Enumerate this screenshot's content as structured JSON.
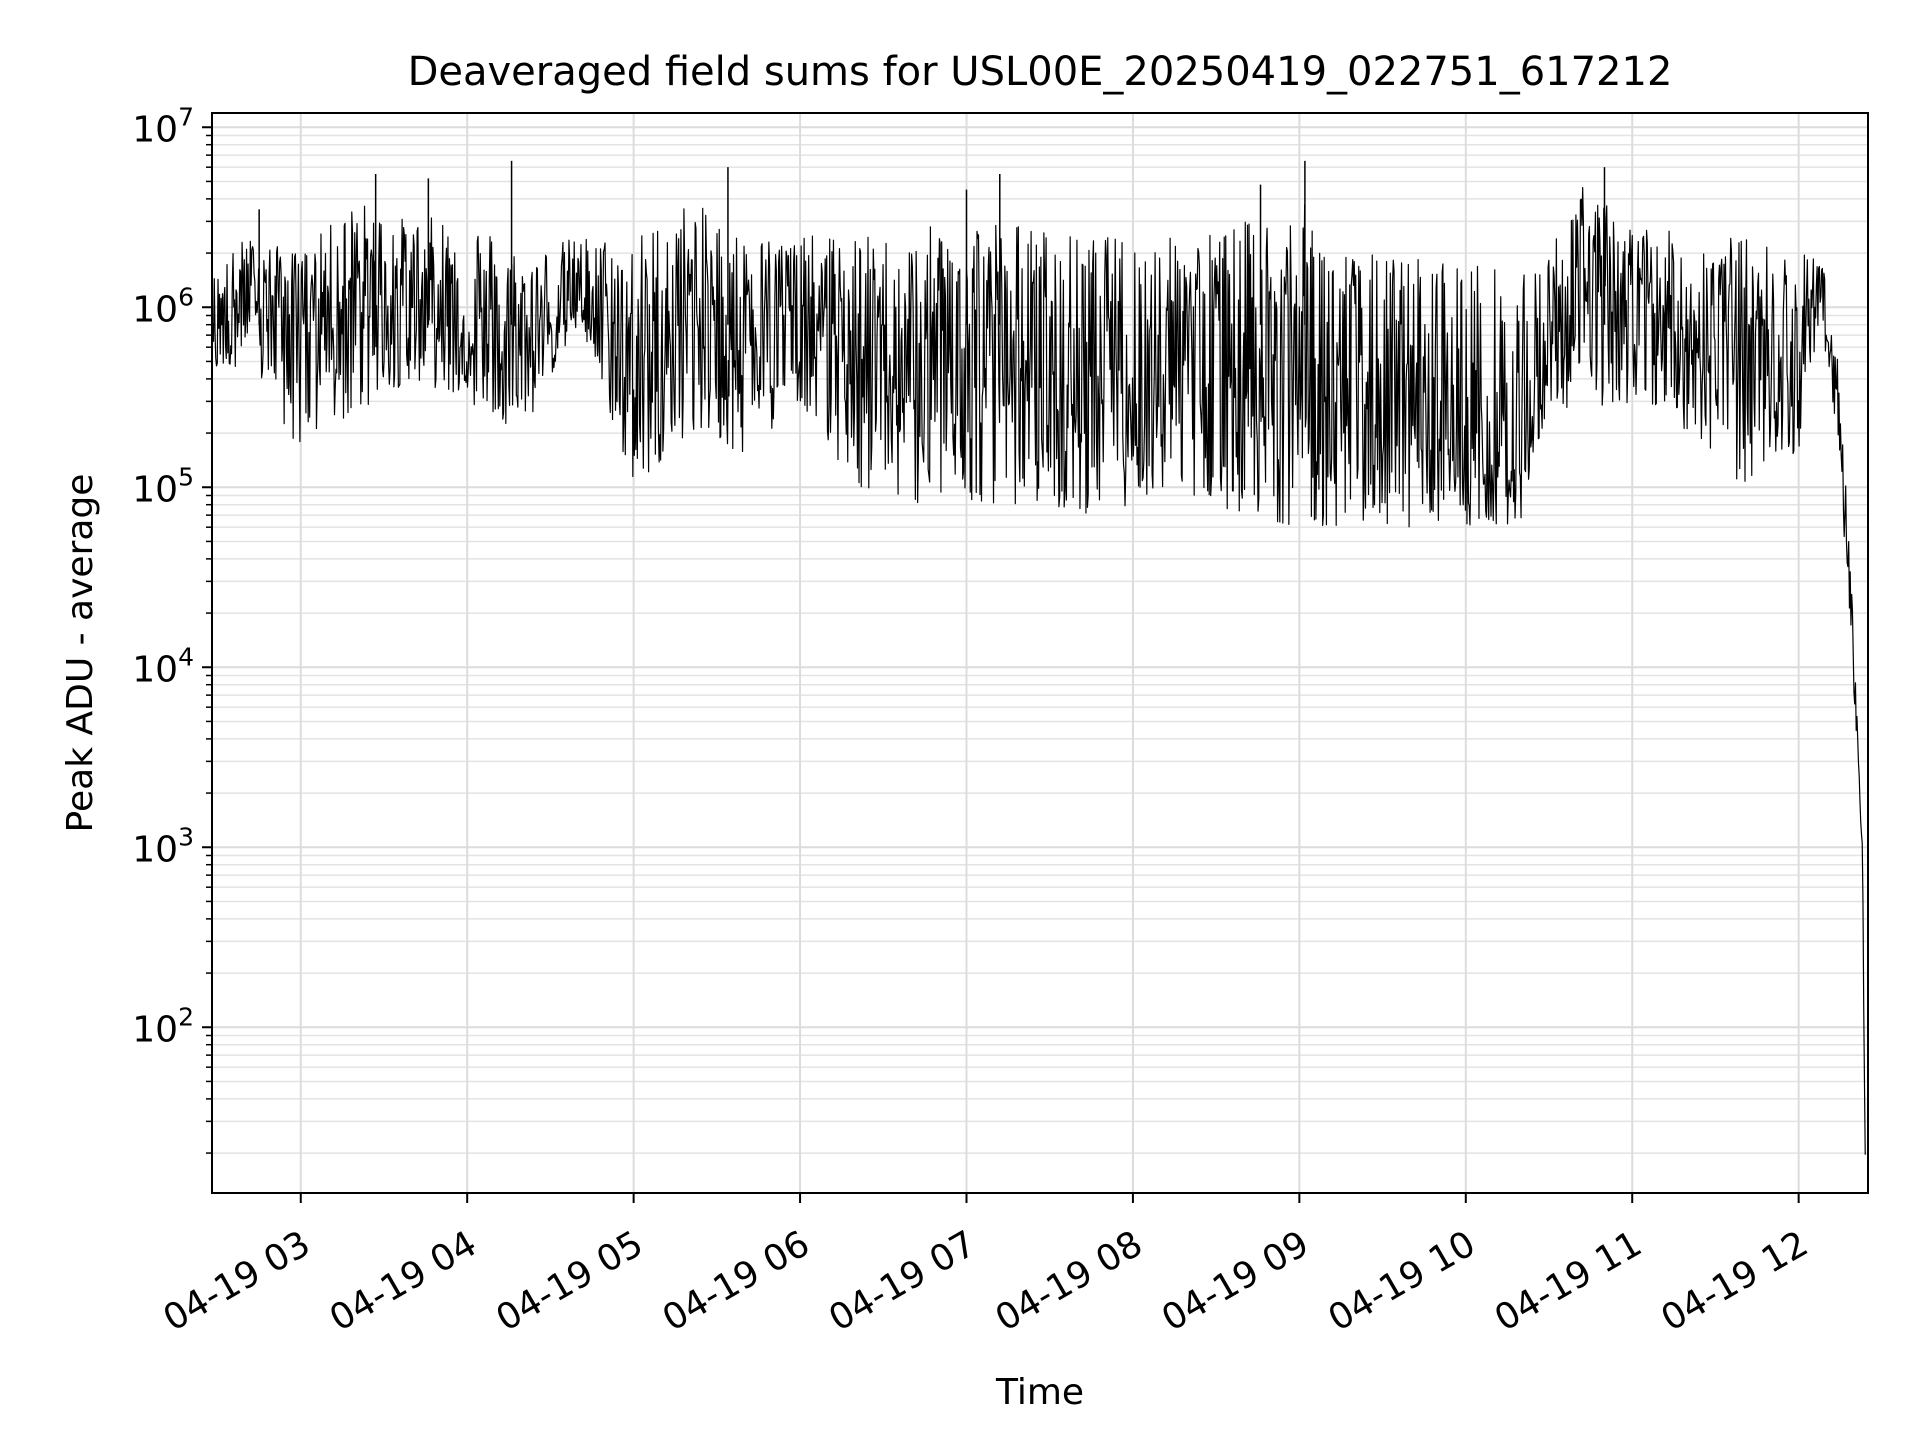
{
  "chart_data": {
    "type": "line",
    "title": "Deaveraged field sums for USL00E_20250419_022751_617212",
    "xlabel": "Time",
    "ylabel": "Peak ADU - average",
    "yscale": "log",
    "grid": true,
    "legend": "none",
    "line_color": "#000000",
    "xlim": [
      "2025-04-19 02:28",
      "2025-04-19 12:25"
    ],
    "ylim": [
      12,
      12000000
    ],
    "x_ticks": [
      "2025-04-19 03:00",
      "2025-04-19 04:00",
      "2025-04-19 05:00",
      "2025-04-19 06:00",
      "2025-04-19 07:00",
      "2025-04-19 08:00",
      "2025-04-19 09:00",
      "2025-04-19 10:00",
      "2025-04-19 11:00",
      "2025-04-19 12:00"
    ],
    "x_tick_labels": [
      "04-19 03",
      "04-19 04",
      "04-19 05",
      "04-19 06",
      "04-19 07",
      "04-19 08",
      "04-19 09",
      "04-19 10",
      "04-19 11",
      "04-19 12"
    ],
    "y_ticks": [
      100,
      1000,
      10000,
      100000,
      1000000,
      10000000
    ],
    "y_tick_bases": [
      "10",
      "10",
      "10",
      "10",
      "10",
      "10"
    ],
    "y_tick_exponents": [
      "2",
      "3",
      "4",
      "5",
      "6",
      "7"
    ],
    "series": [
      {
        "style": "thin-line",
        "envelope_note": "dense noisy trace; hourly min/typical/max levels",
        "x": [
          "2025-04-19 02:28",
          "2025-04-19 02:40",
          "2025-04-19 03:00",
          "2025-04-19 03:20",
          "2025-04-19 03:40",
          "2025-04-19 04:00",
          "2025-04-19 04:20",
          "2025-04-19 04:40",
          "2025-04-19 05:00",
          "2025-04-19 05:20",
          "2025-04-19 05:40",
          "2025-04-19 06:00",
          "2025-04-19 06:20",
          "2025-04-19 06:40",
          "2025-04-19 07:00",
          "2025-04-19 07:20",
          "2025-04-19 07:40",
          "2025-04-19 08:00",
          "2025-04-19 08:20",
          "2025-04-19 08:40",
          "2025-04-19 09:00",
          "2025-04-19 09:20",
          "2025-04-19 09:40",
          "2025-04-19 10:00",
          "2025-04-19 10:20",
          "2025-04-19 10:30",
          "2025-04-19 10:40",
          "2025-04-19 11:00",
          "2025-04-19 11:20",
          "2025-04-19 11:40",
          "2025-04-19 12:00",
          "2025-04-19 12:08",
          "2025-04-19 12:14",
          "2025-04-19 12:18",
          "2025-04-19 12:21",
          "2025-04-19 12:23",
          "2025-04-19 12:24"
        ],
        "low": [
          400000,
          500000,
          150000,
          250000,
          400000,
          300000,
          200000,
          800000,
          100000,
          200000,
          150000,
          300000,
          100000,
          80000,
          80000,
          80000,
          70000,
          80000,
          90000,
          70000,
          60000,
          60000,
          60000,
          60000,
          60000,
          300000,
          250000,
          300000,
          200000,
          100000,
          150000,
          1000000,
          100000,
          15000,
          3000,
          500,
          12
        ],
        "typical": [
          800000,
          1100000,
          1000000,
          1000000,
          1200000,
          700000,
          600000,
          1200000,
          400000,
          900000,
          900000,
          900000,
          600000,
          400000,
          500000,
          400000,
          400000,
          500000,
          600000,
          500000,
          400000,
          300000,
          200000,
          150000,
          120000,
          800000,
          1200000,
          900000,
          700000,
          800000,
          500000,
          1500000,
          300000,
          40000,
          5000,
          800,
          20
        ],
        "high": [
          1500000,
          2500000,
          2000000,
          4000000,
          3000000,
          3500000,
          2000000,
          2500000,
          2500000,
          4000000,
          2500000,
          2500000,
          2500000,
          2500000,
          3500000,
          3000000,
          2500000,
          2500000,
          2500000,
          3000000,
          4000000,
          2000000,
          2000000,
          2000000,
          1500000,
          2000000,
          5000000,
          3000000,
          2500000,
          2500000,
          2000000,
          2000000,
          1000000,
          100000,
          10000,
          1500,
          30
        ]
      }
    ],
    "spikes": [
      {
        "x": "2025-04-19 02:45",
        "y": 3500000
      },
      {
        "x": "2025-04-19 03:27",
        "y": 5500000
      },
      {
        "x": "2025-04-19 03:46",
        "y": 5200000
      },
      {
        "x": "2025-04-19 04:16",
        "y": 6500000
      },
      {
        "x": "2025-04-19 05:34",
        "y": 6000000
      },
      {
        "x": "2025-04-19 07:00",
        "y": 4500000
      },
      {
        "x": "2025-04-19 07:12",
        "y": 5500000
      },
      {
        "x": "2025-04-19 08:46",
        "y": 4800000
      },
      {
        "x": "2025-04-19 09:02",
        "y": 6500000
      },
      {
        "x": "2025-04-19 10:50",
        "y": 6000000
      }
    ]
  }
}
